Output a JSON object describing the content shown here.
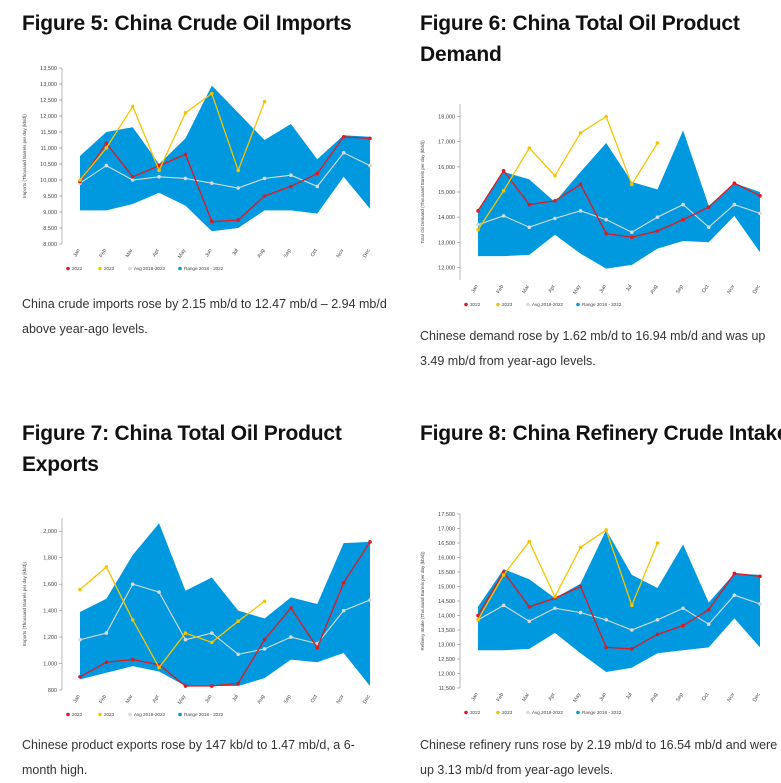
{
  "colors": {
    "range": "#0099e0",
    "avg": "#d9d9d9",
    "y2022": "#e0191f",
    "y2023": "#f5c400",
    "axis": "#888888"
  },
  "legend_labels": [
    "2022",
    "2023",
    "Avg 2018-2022",
    "Range 2018 - 2022"
  ],
  "panels": [
    {
      "title": "Figure 5: China Crude Oil Imports",
      "caption": "China crude imports rose by 2.15 mb/d to 12.47 mb/d – 2.94 mb/d above year-ago levels.",
      "chart_data": {
        "type": "line",
        "categories": [
          "Jan",
          "Feb",
          "Mar",
          "Apr",
          "May",
          "Jun",
          "Jul",
          "Aug",
          "Sep",
          "Oct",
          "Nov",
          "Dec"
        ],
        "ylabel": "Imports (Thousand Barrels per day (kb/d))",
        "ylim": [
          8000,
          13500
        ],
        "yticks": [
          "8,000",
          "8,500",
          "9,000",
          "9,500",
          "10,000",
          "10,500",
          "11,000",
          "11,500",
          "12,000",
          "12,500",
          "13,000",
          "13,500"
        ],
        "range_min": [
          9050,
          9050,
          9250,
          9600,
          9200,
          8400,
          8500,
          9050,
          9050,
          8950,
          10100,
          9100
        ],
        "range_max": [
          10750,
          11500,
          11650,
          10500,
          11300,
          12950,
          12100,
          11250,
          11750,
          10650,
          11400,
          11350
        ],
        "series": [
          {
            "name": "2022",
            "values": [
              9950,
              11150,
              10100,
              10450,
              10800,
              8700,
              8750,
              9500,
              9800,
              10200,
              11350,
              11300
            ]
          },
          {
            "name": "2023",
            "values": [
              10000,
              11000,
              12300,
              10300,
              12100,
              12700,
              10300,
              12450,
              null,
              null,
              null,
              null
            ]
          },
          {
            "name": "Avg 2018-2022",
            "values": [
              9900,
              10450,
              10000,
              10100,
              10050,
              9900,
              9750,
              10050,
              10150,
              9800,
              10850,
              10450
            ]
          }
        ]
      }
    },
    {
      "title": "Figure 6: China Total Oil Product Demand",
      "caption": "Chinese demand rose by 1.62 mb/d to 16.94 mb/d and was up 3.49 mb/d from year-ago levels.",
      "chart_data": {
        "type": "line",
        "categories": [
          "Jan",
          "Feb",
          "Mar",
          "Apr",
          "May",
          "Jun",
          "Jul",
          "Aug",
          "Sep",
          "Oct",
          "Nov",
          "Dec"
        ],
        "ylabel": "Total Oil Demand (Thousand Barrels per day (kb/d))",
        "ylim": [
          11500,
          18500
        ],
        "yticks": [
          "12,000",
          "13,000",
          "14,000",
          "15,000",
          "16,000",
          "17,000",
          "18,000"
        ],
        "range_min": [
          12450,
          12450,
          12500,
          13300,
          12550,
          11950,
          12100,
          12750,
          13050,
          13000,
          14050,
          12600
        ],
        "range_max": [
          14300,
          15800,
          15500,
          14600,
          15800,
          16950,
          15400,
          15100,
          17450,
          14450,
          15350,
          15000
        ],
        "series": [
          {
            "name": "2022",
            "values": [
              14250,
              15850,
              14500,
              14650,
              15300,
              13350,
              13200,
              13450,
              13900,
              14400,
              15350,
              14850
            ]
          },
          {
            "name": "2023",
            "values": [
              13500,
              15050,
              16750,
              15650,
              17350,
              18000,
              15300,
              16950,
              null,
              null,
              null,
              null
            ]
          },
          {
            "name": "Avg 2018-2022",
            "values": [
              13700,
              14050,
              13600,
              13950,
              14250,
              13900,
              13400,
              14000,
              14500,
              13600,
              14500,
              14150
            ]
          }
        ]
      }
    },
    {
      "title": "Figure 7: China Total Oil Product Exports",
      "caption": "Chinese product exports rose by 147 kb/d to 1.47 mb/d, a 6-month high.",
      "chart_data": {
        "type": "line",
        "categories": [
          "Jan",
          "Feb",
          "Mar",
          "Apr",
          "May",
          "Jun",
          "Jul",
          "Aug",
          "Sep",
          "Oct",
          "Nov",
          "Dec"
        ],
        "ylabel": "Exports (Thousand Barrels per day (kb/d))",
        "ylim": [
          800,
          2100
        ],
        "yticks": [
          "800",
          "1,000",
          "1,200",
          "1,400",
          "1,600",
          "1,800",
          "2,000"
        ],
        "range_min": [
          880,
          930,
          980,
          940,
          830,
          830,
          830,
          890,
          1030,
          1010,
          1080,
          830
        ],
        "range_max": [
          1390,
          1490,
          1820,
          2060,
          1550,
          1650,
          1400,
          1340,
          1500,
          1450,
          1910,
          1920
        ],
        "series": [
          {
            "name": "2022",
            "values": [
              900,
              1010,
              1030,
              990,
              830,
              830,
              850,
              1180,
              1420,
              1120,
              1610,
              1920
            ]
          },
          {
            "name": "2023",
            "values": [
              1560,
              1730,
              1330,
              970,
              1230,
              1160,
              1320,
              1470,
              null,
              null,
              null,
              null
            ]
          },
          {
            "name": "Avg 2018-2022",
            "values": [
              1180,
              1230,
              1600,
              1540,
              1180,
              1230,
              1070,
              1110,
              1200,
              1150,
              1400,
              1480
            ]
          }
        ]
      }
    },
    {
      "title": "Figure 8: China Refinery Crude Intake",
      "caption": "Chinese refinery runs rose by 2.19 mb/d to 16.54 mb/d and were up 3.13 mb/d from year-ago levels.",
      "chart_data": {
        "type": "line",
        "categories": [
          "Jan",
          "Feb",
          "Mar",
          "Apr",
          "May",
          "Jun",
          "Jul",
          "Aug",
          "Sep",
          "Oct",
          "Nov",
          "Dec"
        ],
        "ylabel": "Refinery Intake (Thousand Barrels per day (kb/d))",
        "ylim": [
          11500,
          17500
        ],
        "yticks": [
          "11,500",
          "12,000",
          "12,500",
          "13,000",
          "13,500",
          "14,000",
          "14,500",
          "15,000",
          "15,500",
          "16,000",
          "16,500",
          "17,000",
          "17,500"
        ],
        "range_min": [
          12800,
          12800,
          12850,
          13400,
          12700,
          12050,
          12200,
          12700,
          12800,
          12900,
          13900,
          12900
        ],
        "range_max": [
          14300,
          15600,
          15250,
          14600,
          15100,
          16950,
          15400,
          14950,
          16450,
          14450,
          15450,
          15400
        ],
        "series": [
          {
            "name": "2022",
            "values": [
              14000,
              15500,
              14300,
              14600,
              15000,
              12900,
              12850,
              13350,
              13650,
              14200,
              15450,
              15350
            ]
          },
          {
            "name": "2023",
            "values": [
              13850,
              15400,
              16550,
              14650,
              16350,
              16950,
              14350,
              16500,
              null,
              null,
              null,
              null
            ]
          },
          {
            "name": "Avg 2018-2022",
            "values": [
              13850,
              14350,
              13800,
              14250,
              14100,
              13850,
              13500,
              13850,
              14250,
              13700,
              14700,
              14400
            ]
          }
        ]
      }
    }
  ]
}
